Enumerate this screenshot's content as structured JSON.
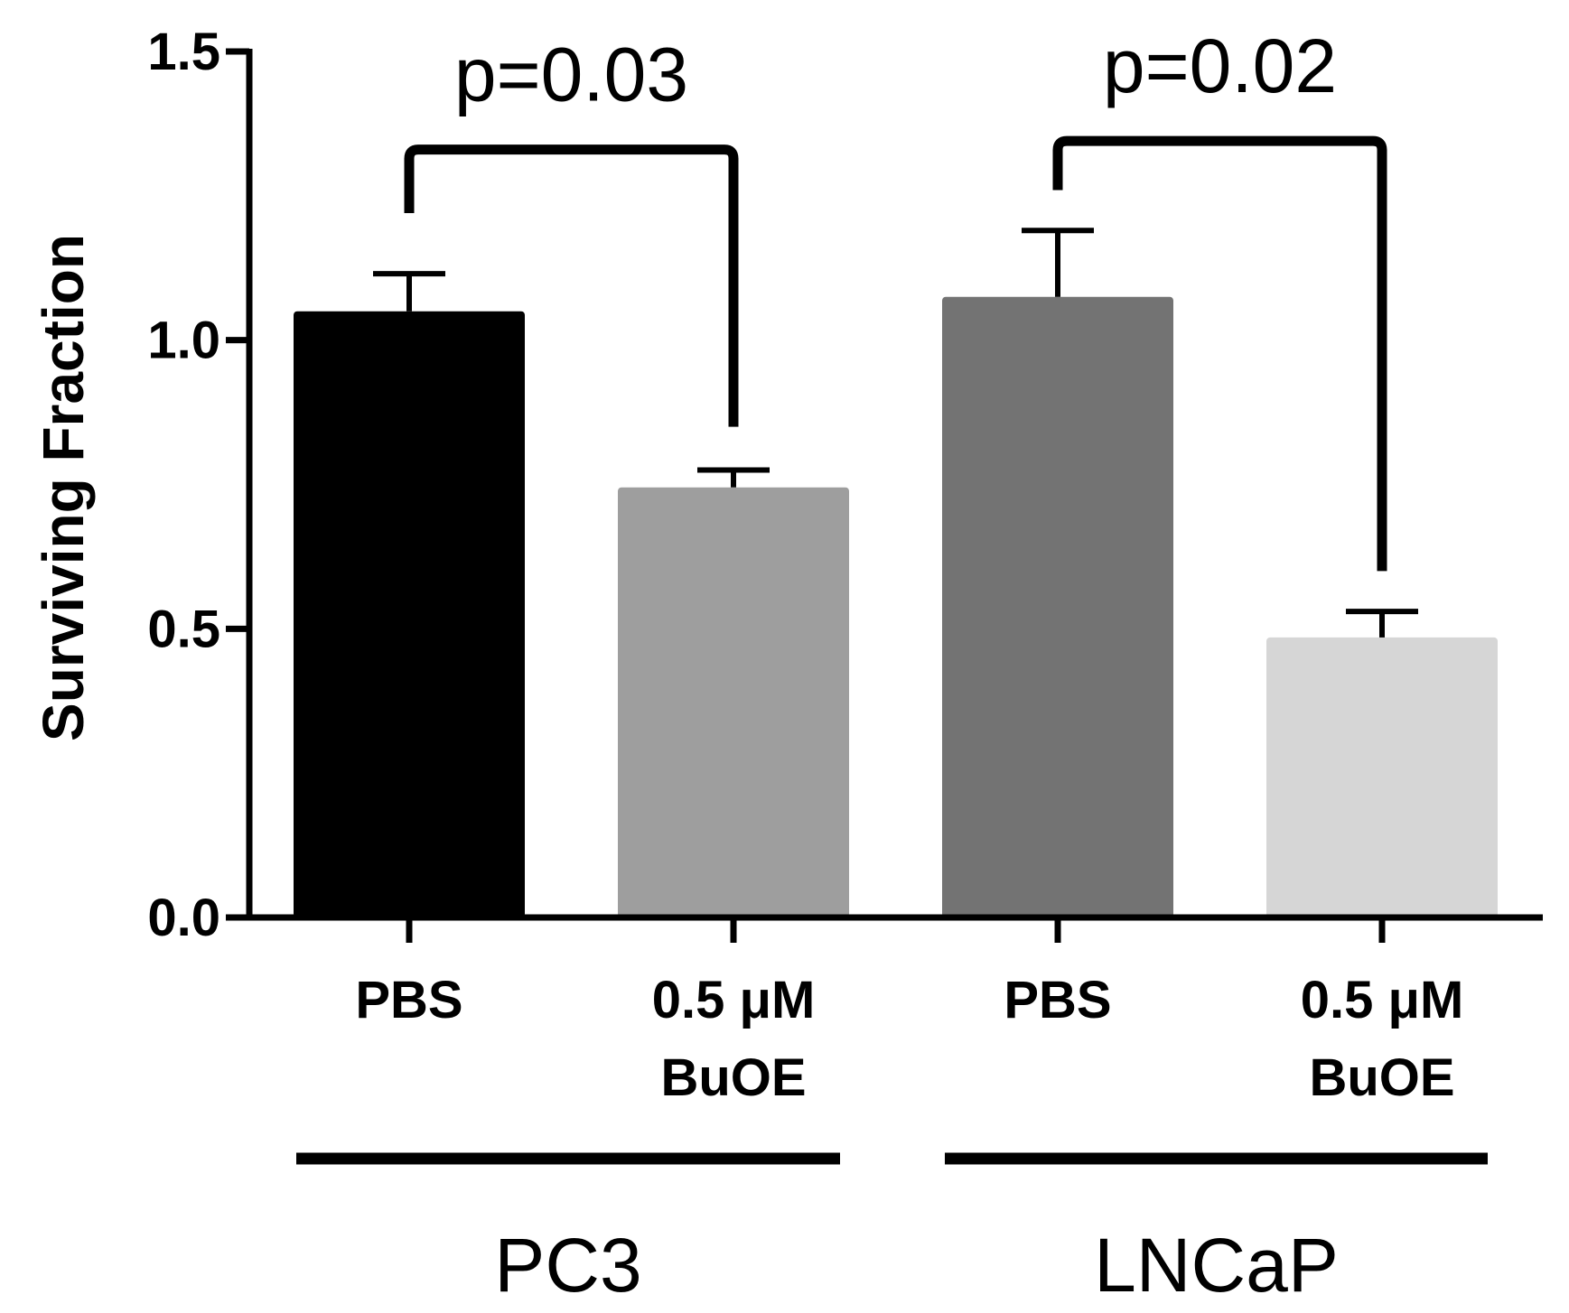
{
  "chart_data": {
    "type": "bar",
    "title": "",
    "ylabel": "Surviving Fraction",
    "xlabel": "",
    "ylim": [
      0,
      1.5
    ],
    "yticks": [
      0.0,
      0.5,
      1.0,
      1.5
    ],
    "ytick_labels": [
      "0.0",
      "0.5",
      "1.0",
      "1.5"
    ],
    "categories": [
      {
        "line1": "PBS",
        "line2": ""
      },
      {
        "line1": "0.5 μM",
        "line2": "BuOE"
      },
      {
        "line1": "PBS",
        "line2": ""
      },
      {
        "line1": "0.5 μM",
        "line2": "BuOE"
      }
    ],
    "values": [
      1.05,
      0.745,
      1.075,
      0.485
    ],
    "errors": [
      0.065,
      0.03,
      0.115,
      0.045
    ],
    "colors": [
      "#000000",
      "#9e9e9e",
      "#737373",
      "#d6d6d6"
    ],
    "groups": [
      {
        "label": "PC3",
        "members": [
          0,
          1
        ]
      },
      {
        "label": "LNCaP",
        "members": [
          2,
          3
        ]
      }
    ],
    "comparisons": [
      {
        "label": "p=0.03",
        "from": 0,
        "to": 1,
        "level": 1.33,
        "left_end": 1.22,
        "right_end": 0.85
      },
      {
        "label": "p=0.02",
        "from": 2,
        "to": 3,
        "level": 1.345,
        "left_end": 1.26,
        "right_end": 0.6
      }
    ]
  }
}
